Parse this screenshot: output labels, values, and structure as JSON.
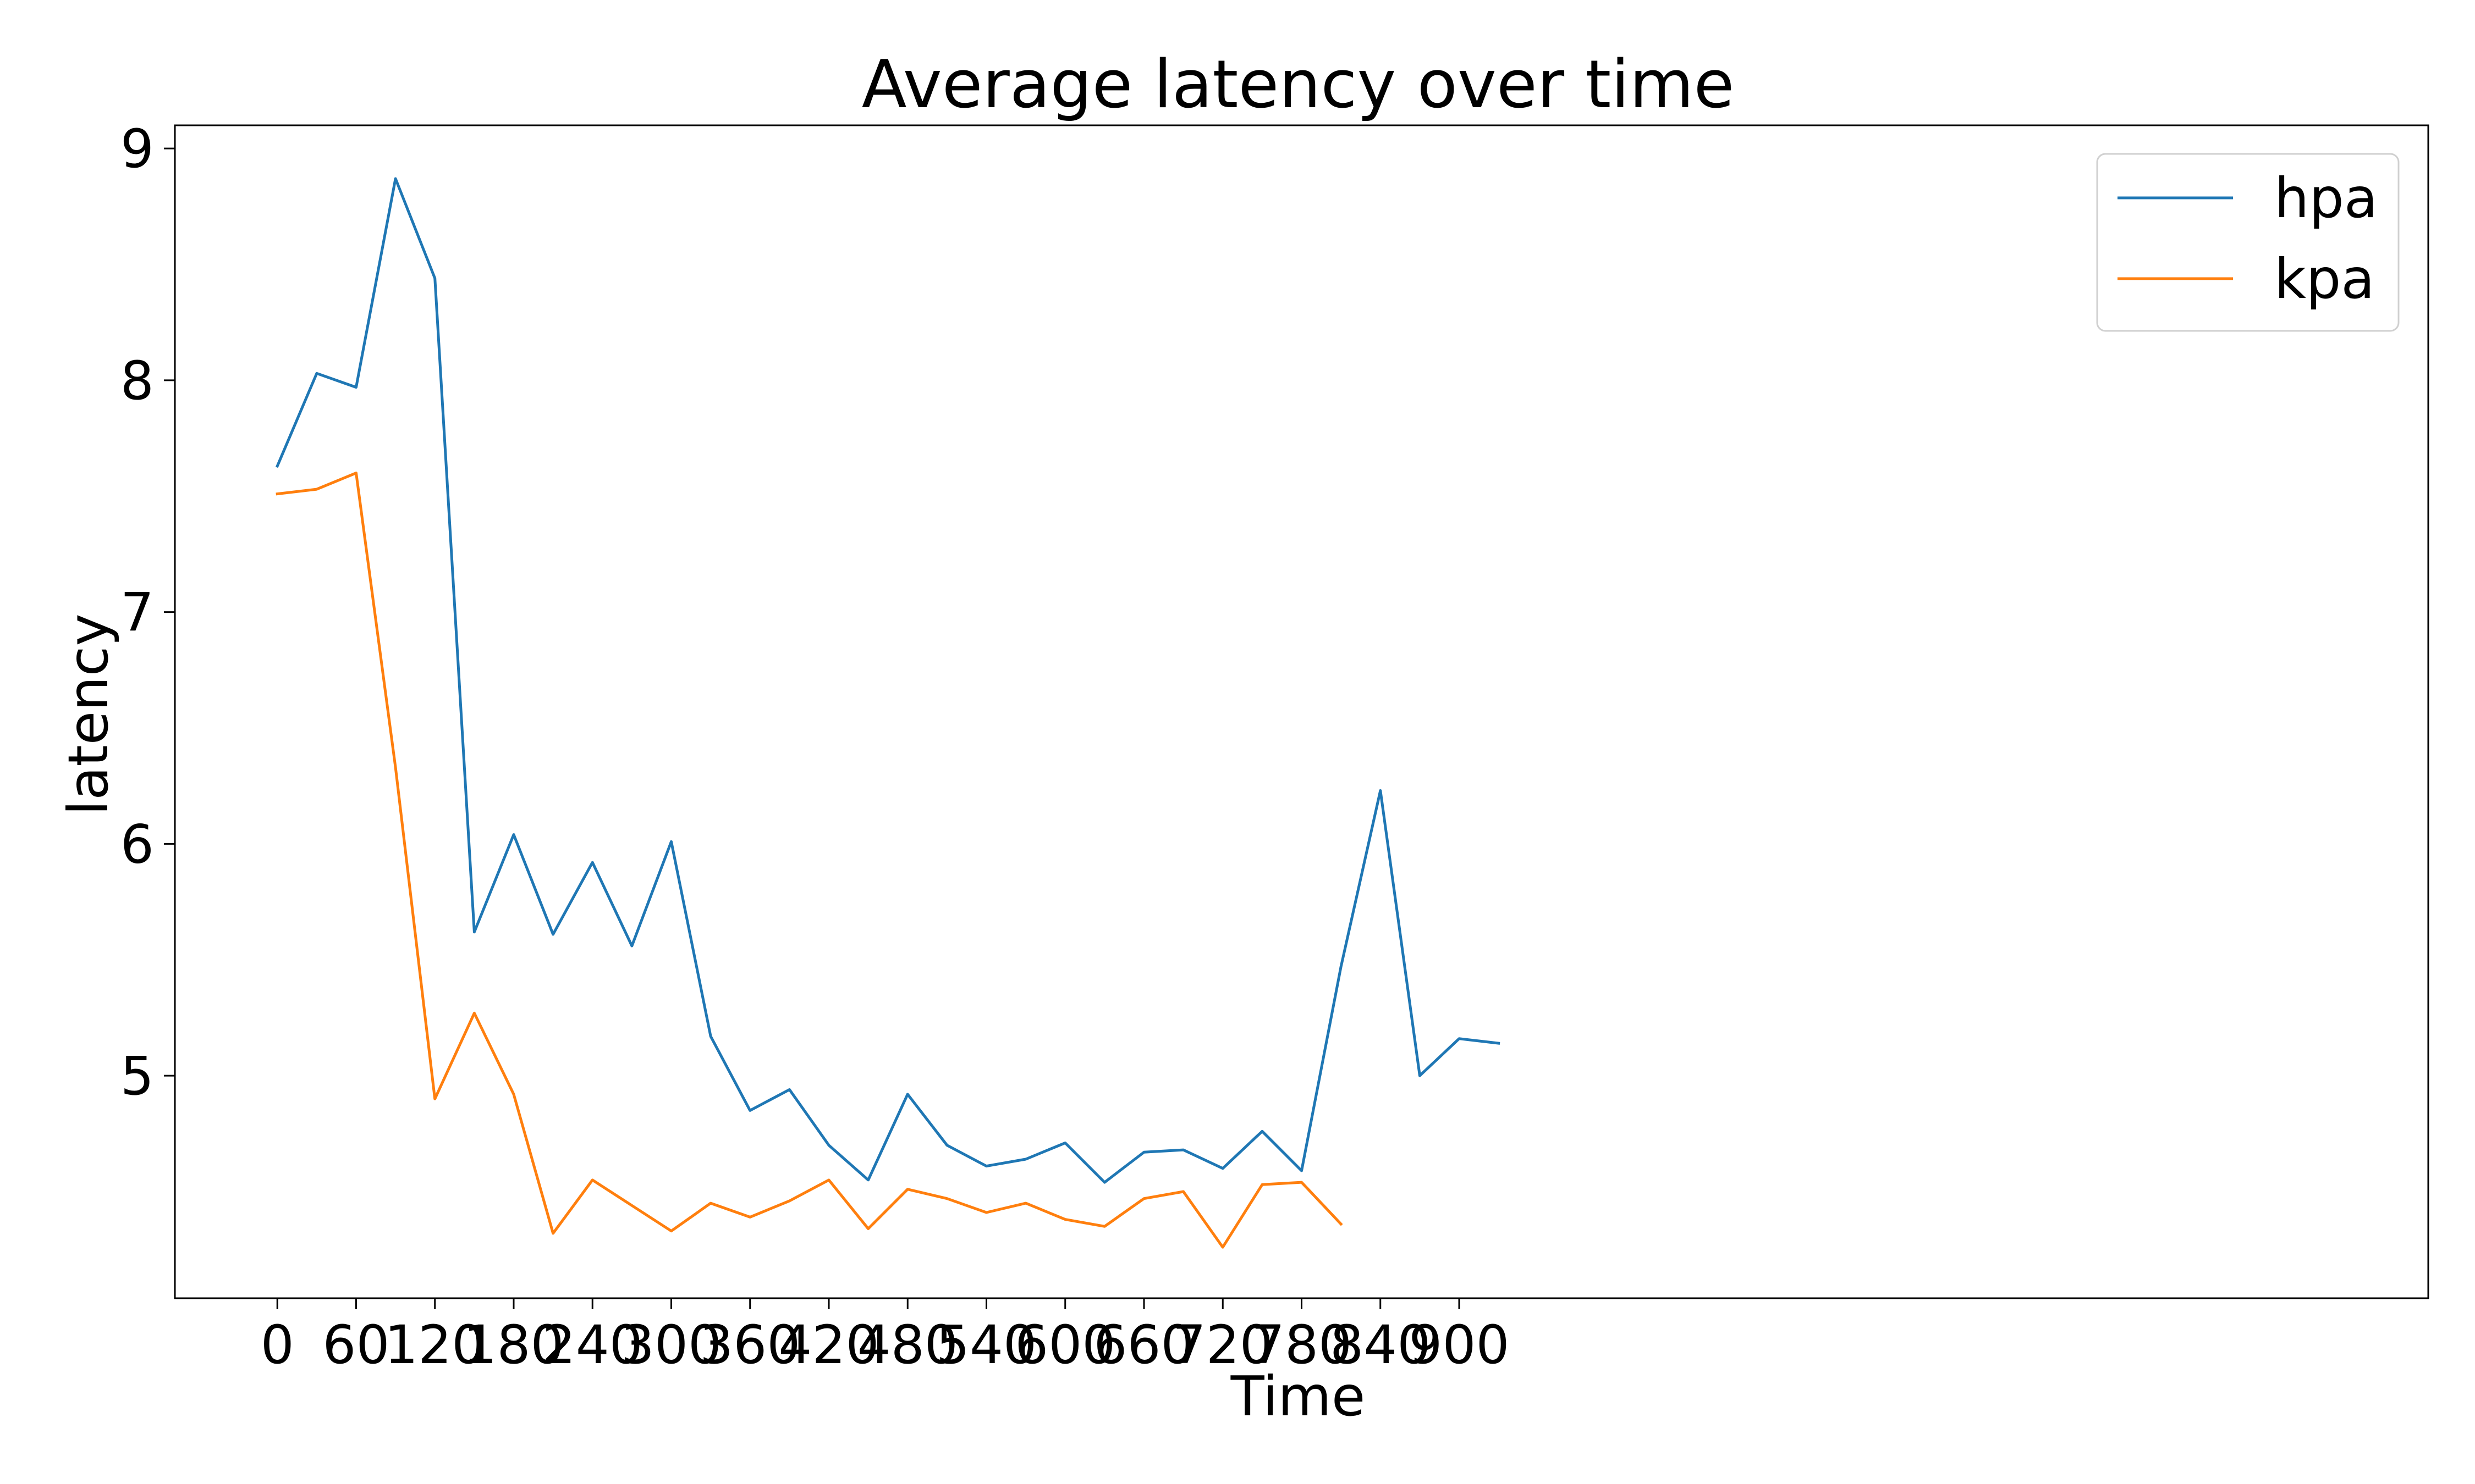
{
  "chart_data": {
    "type": "line",
    "title": "Average latency over time",
    "xlabel": "Time",
    "ylabel": "latency",
    "xlim": [
      -78,
      1638
    ],
    "ylim": [
      4.04,
      9.1
    ],
    "xticks": [
      0,
      60,
      120,
      180,
      240,
      300,
      360,
      420,
      480,
      540,
      600,
      660,
      720,
      780,
      840,
      900
    ],
    "yticks": [
      5,
      6,
      7,
      8,
      9
    ],
    "grid": false,
    "legend_position": "top-right",
    "series": [
      {
        "name": "hpa",
        "color": "#1f77b4",
        "x": [
          0,
          30,
          60,
          90,
          120,
          150,
          180,
          210,
          240,
          270,
          300,
          330,
          360,
          390,
          420,
          450,
          480,
          510,
          540,
          570,
          600,
          630,
          660,
          690,
          720,
          750,
          780,
          810,
          840,
          870,
          900,
          930
        ],
        "y": [
          7.63,
          8.03,
          7.97,
          8.87,
          8.44,
          5.62,
          6.04,
          5.61,
          5.92,
          5.56,
          6.01,
          5.17,
          4.85,
          4.94,
          4.7,
          4.55,
          4.92,
          4.7,
          4.61,
          4.64,
          4.71,
          4.54,
          4.67,
          4.68,
          4.6,
          4.76,
          4.59,
          5.47,
          6.23,
          5.0,
          5.16,
          5.14
        ]
      },
      {
        "name": "kpa",
        "color": "#ff7f0e",
        "x": [
          0,
          30,
          60,
          90,
          120,
          150,
          180,
          210,
          240,
          270,
          300,
          330,
          360,
          390,
          420,
          450,
          480,
          510,
          540,
          570,
          600,
          630,
          660,
          690,
          720,
          750,
          780,
          810
        ],
        "y": [
          7.51,
          7.53,
          7.6,
          6.33,
          4.9,
          5.27,
          4.92,
          4.32,
          4.55,
          4.44,
          4.33,
          4.45,
          4.39,
          4.46,
          4.55,
          4.34,
          4.51,
          4.47,
          4.41,
          4.45,
          4.38,
          4.35,
          4.47,
          4.5,
          4.26,
          4.53,
          4.54,
          4.36
        ]
      }
    ]
  }
}
